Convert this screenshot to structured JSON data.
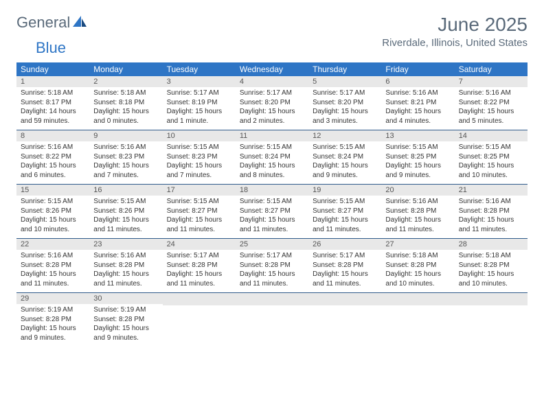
{
  "logo": {
    "word1": "General",
    "word2": "Blue"
  },
  "title": "June 2025",
  "location": "Riverdale, Illinois, United States",
  "colors": {
    "header_bg": "#2e75c5",
    "header_text": "#ffffff",
    "daynum_bg": "#e8e8e8",
    "text": "#333333",
    "title_text": "#5a6a7a",
    "row_border": "#2e5a8a"
  },
  "day_names": [
    "Sunday",
    "Monday",
    "Tuesday",
    "Wednesday",
    "Thursday",
    "Friday",
    "Saturday"
  ],
  "days": [
    {
      "n": 1,
      "sr": "5:18 AM",
      "ss": "8:17 PM",
      "dl": "14 hours and 59 minutes."
    },
    {
      "n": 2,
      "sr": "5:18 AM",
      "ss": "8:18 PM",
      "dl": "15 hours and 0 minutes."
    },
    {
      "n": 3,
      "sr": "5:17 AM",
      "ss": "8:19 PM",
      "dl": "15 hours and 1 minute."
    },
    {
      "n": 4,
      "sr": "5:17 AM",
      "ss": "8:20 PM",
      "dl": "15 hours and 2 minutes."
    },
    {
      "n": 5,
      "sr": "5:17 AM",
      "ss": "8:20 PM",
      "dl": "15 hours and 3 minutes."
    },
    {
      "n": 6,
      "sr": "5:16 AM",
      "ss": "8:21 PM",
      "dl": "15 hours and 4 minutes."
    },
    {
      "n": 7,
      "sr": "5:16 AM",
      "ss": "8:22 PM",
      "dl": "15 hours and 5 minutes."
    },
    {
      "n": 8,
      "sr": "5:16 AM",
      "ss": "8:22 PM",
      "dl": "15 hours and 6 minutes."
    },
    {
      "n": 9,
      "sr": "5:16 AM",
      "ss": "8:23 PM",
      "dl": "15 hours and 7 minutes."
    },
    {
      "n": 10,
      "sr": "5:15 AM",
      "ss": "8:23 PM",
      "dl": "15 hours and 7 minutes."
    },
    {
      "n": 11,
      "sr": "5:15 AM",
      "ss": "8:24 PM",
      "dl": "15 hours and 8 minutes."
    },
    {
      "n": 12,
      "sr": "5:15 AM",
      "ss": "8:24 PM",
      "dl": "15 hours and 9 minutes."
    },
    {
      "n": 13,
      "sr": "5:15 AM",
      "ss": "8:25 PM",
      "dl": "15 hours and 9 minutes."
    },
    {
      "n": 14,
      "sr": "5:15 AM",
      "ss": "8:25 PM",
      "dl": "15 hours and 10 minutes."
    },
    {
      "n": 15,
      "sr": "5:15 AM",
      "ss": "8:26 PM",
      "dl": "15 hours and 10 minutes."
    },
    {
      "n": 16,
      "sr": "5:15 AM",
      "ss": "8:26 PM",
      "dl": "15 hours and 11 minutes."
    },
    {
      "n": 17,
      "sr": "5:15 AM",
      "ss": "8:27 PM",
      "dl": "15 hours and 11 minutes."
    },
    {
      "n": 18,
      "sr": "5:15 AM",
      "ss": "8:27 PM",
      "dl": "15 hours and 11 minutes."
    },
    {
      "n": 19,
      "sr": "5:15 AM",
      "ss": "8:27 PM",
      "dl": "15 hours and 11 minutes."
    },
    {
      "n": 20,
      "sr": "5:16 AM",
      "ss": "8:28 PM",
      "dl": "15 hours and 11 minutes."
    },
    {
      "n": 21,
      "sr": "5:16 AM",
      "ss": "8:28 PM",
      "dl": "15 hours and 11 minutes."
    },
    {
      "n": 22,
      "sr": "5:16 AM",
      "ss": "8:28 PM",
      "dl": "15 hours and 11 minutes."
    },
    {
      "n": 23,
      "sr": "5:16 AM",
      "ss": "8:28 PM",
      "dl": "15 hours and 11 minutes."
    },
    {
      "n": 24,
      "sr": "5:17 AM",
      "ss": "8:28 PM",
      "dl": "15 hours and 11 minutes."
    },
    {
      "n": 25,
      "sr": "5:17 AM",
      "ss": "8:28 PM",
      "dl": "15 hours and 11 minutes."
    },
    {
      "n": 26,
      "sr": "5:17 AM",
      "ss": "8:28 PM",
      "dl": "15 hours and 11 minutes."
    },
    {
      "n": 27,
      "sr": "5:18 AM",
      "ss": "8:28 PM",
      "dl": "15 hours and 10 minutes."
    },
    {
      "n": 28,
      "sr": "5:18 AM",
      "ss": "8:28 PM",
      "dl": "15 hours and 10 minutes."
    },
    {
      "n": 29,
      "sr": "5:19 AM",
      "ss": "8:28 PM",
      "dl": "15 hours and 9 minutes."
    },
    {
      "n": 30,
      "sr": "5:19 AM",
      "ss": "8:28 PM",
      "dl": "15 hours and 9 minutes."
    }
  ],
  "labels": {
    "sunrise": "Sunrise:",
    "sunset": "Sunset:",
    "daylight": "Daylight:"
  }
}
